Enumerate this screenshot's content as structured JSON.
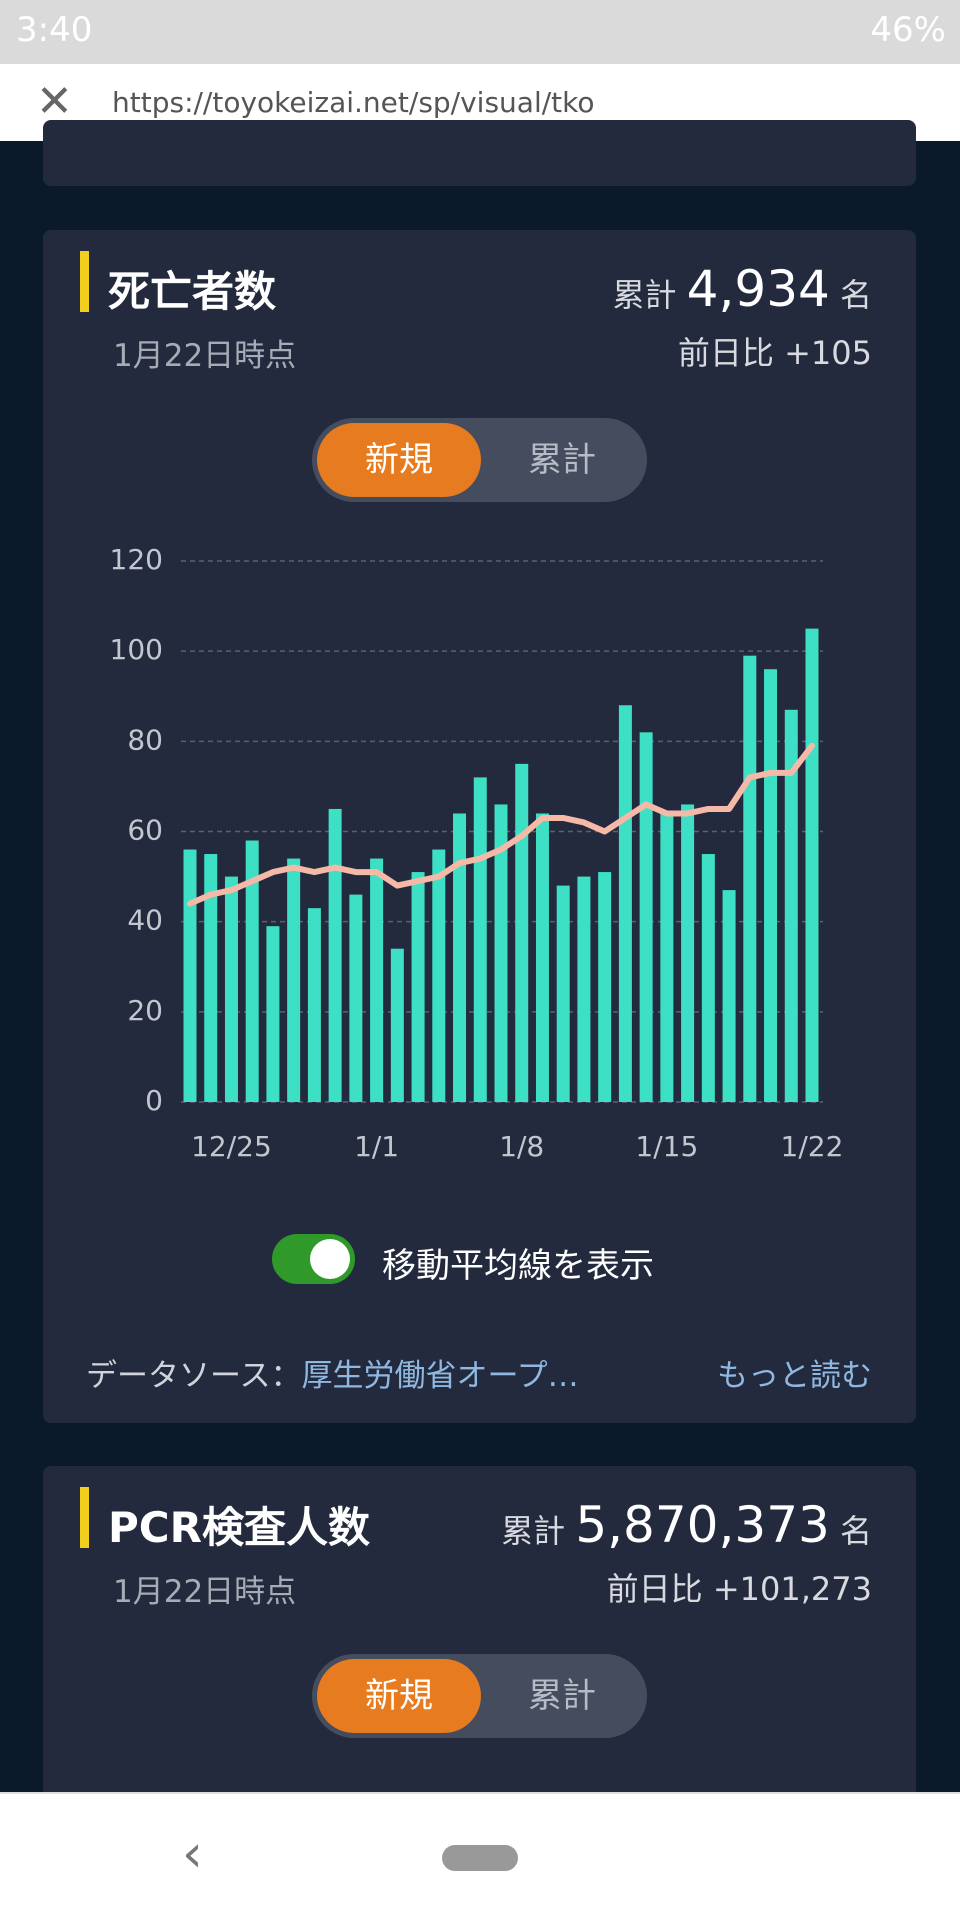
{
  "status_bar": {
    "time": "3:40",
    "battery": "46%"
  },
  "url_bar": {
    "url": "https://toyokeizai.net/sp/visual/tko"
  },
  "cards": [
    {
      "title": "死亡者数",
      "date": "1月22日時点",
      "total_label": "累計",
      "total": "4,934",
      "unit": "名",
      "change": "前日比 +105",
      "tabs": [
        "新規",
        "累計"
      ],
      "toggle_label": "移動平均線を表示",
      "source_label": "データソース：",
      "source": "厚生労働省オープ…",
      "more": "もっと読む"
    },
    {
      "title": "PCR検査人数",
      "date": "1月22日時点",
      "total_label": "累計",
      "total": "5,870,373",
      "unit": "名",
      "change": "前日比 +101,273",
      "tabs": [
        "新規",
        "累計"
      ]
    }
  ],
  "chart_data": {
    "type": "bar",
    "categories": [
      null,
      null,
      "12/25",
      null,
      null,
      null,
      null,
      null,
      null,
      "1/1",
      null,
      null,
      null,
      null,
      null,
      null,
      "1/8",
      null,
      null,
      null,
      null,
      null,
      null,
      "1/15",
      null,
      null,
      null,
      null,
      null,
      null,
      "1/22"
    ],
    "values": [
      56,
      55,
      50,
      58,
      39,
      54,
      43,
      65,
      46,
      54,
      34,
      51,
      56,
      64,
      72,
      66,
      75,
      64,
      48,
      50,
      51,
      88,
      82,
      64,
      66,
      55,
      47,
      99,
      96,
      87,
      105
    ],
    "color": "#3ee0c5",
    "moving_average": {
      "color": "#f6b9a8",
      "values": [
        44,
        46,
        47,
        49,
        51,
        52,
        51,
        52,
        51,
        51,
        48,
        49,
        50,
        53,
        54,
        56,
        59,
        63,
        63,
        62,
        60,
        63,
        66,
        64,
        64,
        65,
        65,
        72,
        73,
        73,
        79
      ]
    },
    "ylim": [
      0,
      120
    ],
    "yticks": [
      0,
      20,
      40,
      60,
      80,
      100,
      120
    ],
    "grid": true
  }
}
